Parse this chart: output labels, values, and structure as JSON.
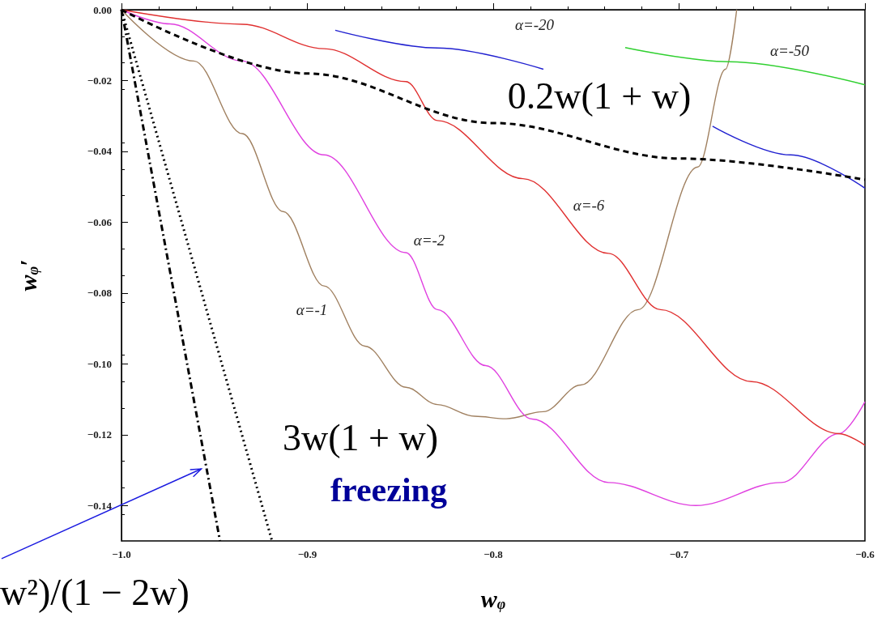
{
  "chart_data": {
    "type": "line",
    "xlabel": "w$_{φ}$",
    "ylabel": "w$_{φ}$′",
    "xlim": [
      -1.0,
      -0.6
    ],
    "ylim": [
      -0.15,
      0
    ],
    "xticks": [
      {
        "value": -1.0,
        "label": "−1.0"
      },
      {
        "value": -0.9,
        "label": "−0.9"
      },
      {
        "value": -0.8,
        "label": "−0.8"
      },
      {
        "value": -0.7,
        "label": "−0.7"
      },
      {
        "value": -0.6,
        "label": "−0.6"
      }
    ],
    "yticks": [
      {
        "value": 0,
        "label": "0.00"
      },
      {
        "value": -0.02,
        "label": "−0.02"
      },
      {
        "value": -0.04,
        "label": "−0.04"
      },
      {
        "value": -0.06,
        "label": "−0.06"
      },
      {
        "value": -0.08,
        "label": "−0.08"
      },
      {
        "value": -0.1,
        "label": "−0.10"
      },
      {
        "value": -0.12,
        "label": "−0.12"
      },
      {
        "value": -0.14,
        "label": "−0.14"
      }
    ],
    "grid": false,
    "marker": "none",
    "series": [
      {
        "color": "#a08060",
        "line_style": "solid",
        "x": [
          -1.0,
          -0.961,
          -0.935,
          -0.913,
          -0.891,
          -0.869,
          -0.847,
          -0.83,
          -0.81,
          -0.793,
          -0.773,
          -0.753,
          -0.722,
          -0.69,
          -0.675,
          -0.669
        ],
        "values": [
          0,
          -0.0145,
          -0.035,
          -0.057,
          -0.078,
          -0.095,
          -0.1066,
          -0.1115,
          -0.1148,
          -0.1155,
          -0.1135,
          -0.106,
          -0.0847,
          -0.0444,
          -0.0168,
          0
        ]
      },
      {
        "color": "#e040e0",
        "line_style": "solid",
        "x": [
          -1.0,
          -0.974,
          -0.935,
          -0.891,
          -0.847,
          -0.83,
          -0.804,
          -0.779,
          -0.738,
          -0.691,
          -0.645,
          -0.614,
          -0.6
        ],
        "values": [
          0,
          -0.004,
          -0.0145,
          -0.041,
          -0.0686,
          -0.0847,
          -0.1005,
          -0.1156,
          -0.1335,
          -0.14,
          -0.1335,
          -0.1197,
          -0.1107
        ]
      },
      {
        "color": "#e03030",
        "line_style": "solid",
        "x": [
          -1.0,
          -0.935,
          -0.891,
          -0.847,
          -0.83,
          -0.784,
          -0.738,
          -0.71,
          -0.661,
          -0.614,
          -0.6
        ],
        "values": [
          0,
          -0.0041,
          -0.011,
          -0.0203,
          -0.0313,
          -0.0477,
          -0.0688,
          -0.0847,
          -0.105,
          -0.1197,
          -0.123
        ]
      },
      {
        "color": "#2020d0",
        "line_style": "solid",
        "x": [
          -0.885,
          -0.83,
          -0.773,
          -0.73,
          -0.682,
          -0.64,
          -0.6
        ],
        "values": [
          -0.0058,
          -0.0108,
          -0.0168,
          null,
          -0.0329,
          -0.041,
          -0.0504
        ]
      },
      {
        "color": "#30d030",
        "line_style": "solid",
        "x": [
          -0.729,
          -0.673,
          -0.6
        ],
        "values": [
          -0.0107,
          -0.0147,
          -0.0212
        ]
      },
      {
        "color": "#000000",
        "line_style": "dashed",
        "x": [
          -1.0,
          -0.9,
          -0.8,
          -0.7,
          -0.6
        ],
        "values": [
          0,
          -0.018,
          -0.032,
          -0.042,
          -0.048
        ]
      },
      {
        "color": "#000000",
        "line_style": "dashdot",
        "x": [
          -1.0,
          -0.947
        ],
        "values": [
          0,
          -0.15
        ]
      },
      {
        "color": "#000000",
        "line_style": "dotted",
        "x": [
          -1.0,
          -0.919
        ],
        "values": [
          0,
          -0.15
        ]
      }
    ],
    "annotations": [
      "α=-20",
      "α=-50",
      "α=-6",
      "α=-2",
      "α=-1",
      "0.2w(1 + w)",
      "3w(1 + w)",
      "freezing",
      "w²)/(1 − 2w)"
    ]
  }
}
